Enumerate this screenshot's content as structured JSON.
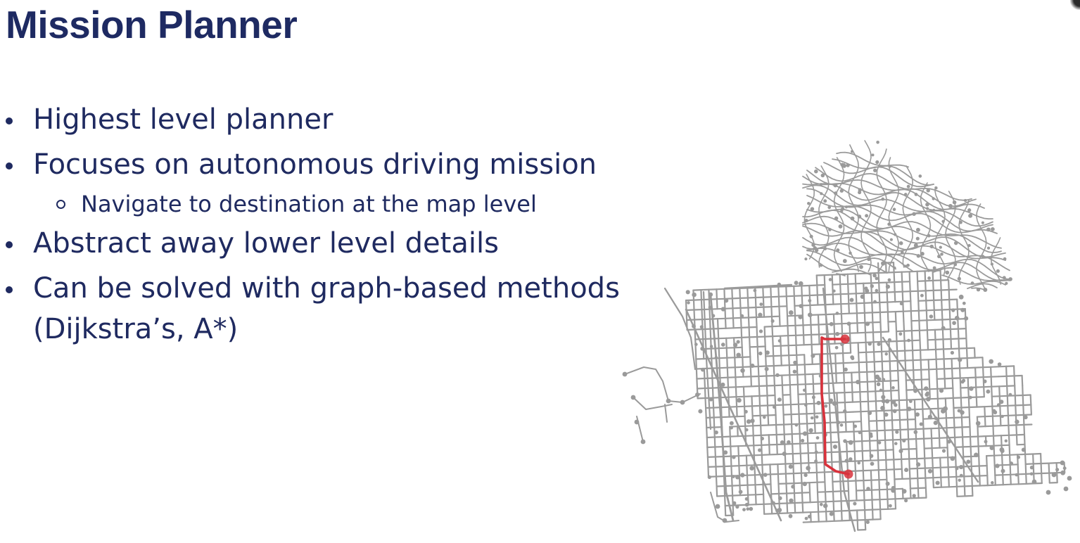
{
  "slide": {
    "title": "Mission Planner",
    "bullets": [
      {
        "text": "Highest level planner"
      },
      {
        "text": "Focuses on autonomous driving mission",
        "subbullets": [
          {
            "text": "Navigate to destination at the map level"
          }
        ]
      },
      {
        "text": "Abstract away lower level details"
      },
      {
        "text": "Can be solved with graph-based methods",
        "continuation": "(Dijkstra’s, A*)"
      }
    ]
  },
  "map": {
    "road_color": "#9a9a9a",
    "route_color": "#d8323c",
    "background": "#ffffff"
  },
  "colors": {
    "title": "#1e2a62",
    "text": "#1f2a60"
  }
}
